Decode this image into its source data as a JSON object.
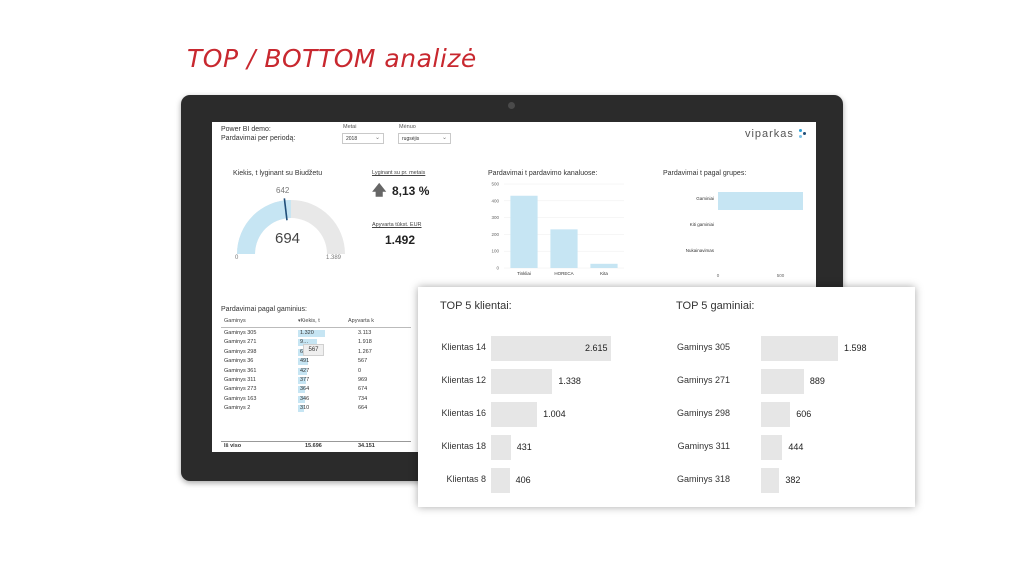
{
  "slide_title": "TOP / BOTTOM analizė",
  "dashboard": {
    "header_line1": "Power BI demo:",
    "header_line2": "Pardavimai per periodą:",
    "filters": [
      {
        "label": "Metai",
        "value": "2018"
      },
      {
        "label": "Mėnuo",
        "value": "rugsėjis"
      }
    ],
    "logo": "viparkas",
    "colors": {
      "accent_bar": "#c6e5f3",
      "gauge_fill": "#c6e5f3",
      "gauge_bg": "#e8e8e8",
      "gauge_target": "#1f4e79"
    },
    "gauge": {
      "title": "Kiekis, t lyginant su Biudžetu",
      "value": 694,
      "value_label": "694",
      "target": 642,
      "target_label": "642",
      "min": 0,
      "min_label": "0",
      "max": 1389,
      "max_label": "1.389"
    },
    "kpis": [
      {
        "title": "Lyginant su pr. metais",
        "value": "8,13 %",
        "icon": "arrow-up-icon"
      },
      {
        "title": "Apyvarta tūkst. EUR",
        "value": "1.492"
      }
    ],
    "channels_chart": {
      "title": "Pardavimai t pardavimo kanaluose:",
      "y_ticks": [
        "500",
        "400",
        "300",
        "200",
        "100",
        "0"
      ]
    },
    "groups_chart": {
      "title": "Pardavimai t pagal grupes:",
      "x_ticks": [
        "0",
        "500"
      ]
    },
    "product_table": {
      "title": "Pardavimai pagal gaminius:",
      "columns": [
        "Gaminys",
        "Kiekis, t",
        "Apyvarta k"
      ],
      "rows": [
        {
          "name": "Gaminys 305",
          "qty": "1.320",
          "qty_value": 1320,
          "turnover": "3.113"
        },
        {
          "name": "Gaminys 271",
          "qty": "9…",
          "qty_value": 930,
          "turnover": "1.918"
        },
        {
          "name": "Gaminys 298",
          "qty": "63…",
          "qty_value": 630,
          "turnover": "1.267"
        },
        {
          "name": "Gaminys 36",
          "qty": "491",
          "qty_value": 491,
          "turnover": "567"
        },
        {
          "name": "Gaminys 361",
          "qty": "427",
          "qty_value": 427,
          "turnover": "0"
        },
        {
          "name": "Gaminys 311",
          "qty": "377",
          "qty_value": 377,
          "turnover": "969"
        },
        {
          "name": "Gaminys 273",
          "qty": "364",
          "qty_value": 364,
          "turnover": "674"
        },
        {
          "name": "Gaminys 163",
          "qty": "346",
          "qty_value": 346,
          "turnover": "734"
        },
        {
          "name": "Gaminys 2",
          "qty": "310",
          "qty_value": 310,
          "turnover": "664"
        }
      ],
      "tooltip": "567",
      "total": {
        "label": "Iš viso",
        "qty": "15.696",
        "turnover": "34.151"
      }
    }
  },
  "chart_data": [
    {
      "type": "gauge",
      "title": "Kiekis, t lyginant su Biudžetu",
      "value": 694,
      "target": 642,
      "min": 0,
      "max": 1389
    },
    {
      "type": "bar",
      "title": "Pardavimai t pardavimo kanaluose:",
      "categories": [
        "Tinkliai",
        "HORECA",
        "Kita"
      ],
      "values": [
        430,
        230,
        25
      ],
      "ylim": [
        0,
        500
      ]
    },
    {
      "type": "bar",
      "orientation": "horizontal",
      "title": "Pardavimai t pagal grupes:",
      "categories": [
        "Gaminiai",
        "Kiti gaminiai",
        "Nukainavimas"
      ],
      "values": [
        680,
        0,
        0
      ],
      "xlim": [
        0,
        800
      ]
    },
    {
      "type": "bar",
      "orientation": "horizontal",
      "title": "TOP 5 klientai:",
      "categories": [
        "Klientas 14",
        "Klientas 12",
        "Klientas 16",
        "Klientas 18",
        "Klientas 8"
      ],
      "values": [
        2615,
        1338,
        1004,
        431,
        406
      ],
      "value_labels": [
        "2.615",
        "1.338",
        "1.004",
        "431",
        "406"
      ],
      "xlim": [
        0,
        2615
      ]
    },
    {
      "type": "bar",
      "orientation": "horizontal",
      "title": "TOP 5 gaminiai:",
      "categories": [
        "Gaminys 305",
        "Gaminys 271",
        "Gaminys 298",
        "Gaminys 311",
        "Gaminys 318"
      ],
      "values": [
        1598,
        889,
        606,
        444,
        382
      ],
      "value_labels": [
        "1.598",
        "889",
        "606",
        "444",
        "382"
      ],
      "xlim": [
        0,
        1598
      ]
    }
  ]
}
